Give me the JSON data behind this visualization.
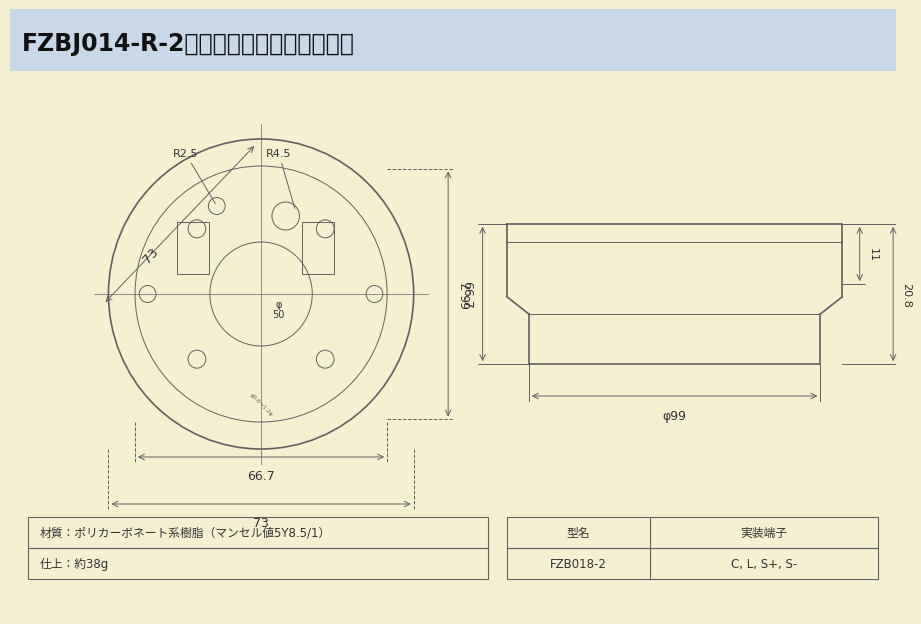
{
  "title": "FZBJ014-R-2型感知器ベース（露出用）",
  "bg_color": "#f5f0d0",
  "header_color": "#c8d8e8",
  "line_color": "#606060",
  "dim_color": "#606060",
  "text_color": "#333333",
  "table1_rows": [
    [
      "材質：ポリカーボネート系樹脂（マンセル値5Y8.5/1）"
    ],
    [
      "仕上：約38g"
    ]
  ],
  "table2_rows": [
    [
      "型名",
      "実装端子"
    ],
    [
      "FZB018-2",
      "C, L, S+, S-"
    ]
  ],
  "dim_labels": {
    "top_width": "73",
    "r25": "R2.5",
    "r45": "R4.5",
    "height_667": "66.7",
    "phi50": "φ50",
    "bottom_667": "66.7",
    "bottom_73": "73",
    "side_phi99": "φ99",
    "side_11": "11",
    "side_208": "20.8"
  }
}
